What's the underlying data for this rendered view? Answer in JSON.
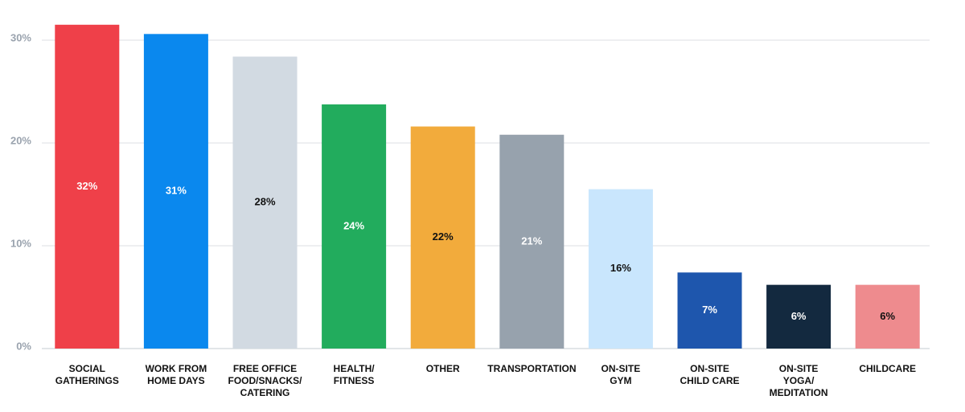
{
  "chart_data": {
    "type": "bar",
    "categories": [
      "SOCIAL\nGATHERINGS",
      "WORK FROM\nHOME DAYS",
      "FREE OFFICE\nFOOD/SNACKS/\nCATERING",
      "HEALTH/\nFITNESS",
      "OTHER",
      "TRANSPORTATION",
      "ON-SITE\nGYM",
      "ON-SITE\nCHILD CARE",
      "ON-SITE\nYOGA/\nMEDITATION",
      "CHILDCARE"
    ],
    "values": [
      31.5,
      30.6,
      28.4,
      23.75,
      21.6,
      20.8,
      15.5,
      7.4,
      6.2,
      6.2
    ],
    "value_labels": [
      "32%",
      "31%",
      "28%",
      "24%",
      "22%",
      "21%",
      "16%",
      "7%",
      "6%",
      "6%"
    ],
    "colors": [
      "#ef4049",
      "#0a88ee",
      "#d2dae2",
      "#22ac5d",
      "#f2ab3c",
      "#97a2ad",
      "#c9e6fd",
      "#1e56ad",
      "#13293f",
      "#ee8b8e"
    ],
    "label_colors": [
      "#ffffff",
      "#ffffff",
      "#111111",
      "#ffffff",
      "#111111",
      "#ffffff",
      "#111111",
      "#ffffff",
      "#ffffff",
      "#111111"
    ],
    "ylim": [
      0,
      32
    ],
    "yticks": [
      {
        "value": 0,
        "label": "0%"
      },
      {
        "value": 10,
        "label": "10%"
      },
      {
        "value": 20,
        "label": "20%"
      },
      {
        "value": 30,
        "label": "30%"
      }
    ],
    "grid": true
  }
}
